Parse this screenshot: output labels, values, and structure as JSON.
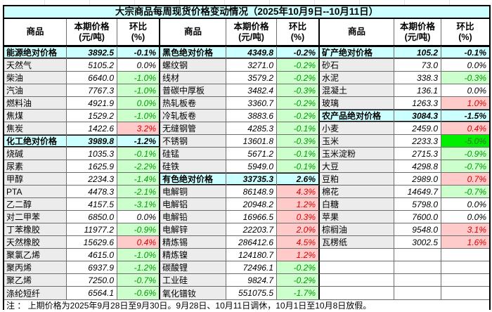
{
  "title": "大宗商品每周现货价格变动情况（2025年10月9日--10月11日）",
  "header": {
    "commodity": "商品",
    "price_l1": "本期价格",
    "price_l2": "(元/吨)",
    "pct_l1": "环比",
    "pct_l2": "(%)"
  },
  "groups": [
    {
      "rows": [
        {
          "name": "能源绝对价格",
          "price": "3892.5",
          "pct": "-0.1%",
          "tone": "cat"
        },
        {
          "name": "天然气",
          "price": "5105.2",
          "pct": "0.0%",
          "tone": "flat"
        },
        {
          "name": "柴油",
          "price": "6640.0",
          "pct": "-1.0%",
          "tone": "down"
        },
        {
          "name": "汽油",
          "price": "7767.3",
          "pct": "-1.0%",
          "tone": "down"
        },
        {
          "name": "燃料油",
          "price": "4921.9",
          "pct": "0.0%",
          "tone": "down"
        },
        {
          "name": "焦煤",
          "price": "1529.2",
          "pct": "-1.0%",
          "tone": "down"
        },
        {
          "name": "焦炭",
          "price": "1422.6",
          "pct": "3.2%",
          "tone": "up"
        },
        {
          "name": "化工绝对价格",
          "price": "3989.8",
          "pct": "-1.2%",
          "tone": "cat"
        },
        {
          "name": "烧碱",
          "price": "1035.3",
          "pct": "-0.1%",
          "tone": "down"
        },
        {
          "name": "尿素",
          "price": "1625.9",
          "pct": "-2.2%",
          "tone": "down"
        },
        {
          "name": "甲醇",
          "price": "2234.3",
          "pct": "-1.4%",
          "tone": "down"
        },
        {
          "name": "PTA",
          "price": "4478.3",
          "pct": "-2.1%",
          "tone": "down"
        },
        {
          "name": "乙二醇",
          "price": "4157.5",
          "pct": "-3.1%",
          "tone": "down"
        },
        {
          "name": "对二甲苯",
          "price": "6850.0",
          "pct": "0.0%",
          "tone": "flat"
        },
        {
          "name": "丁苯橡胶",
          "price": "11977.2",
          "pct": "-0.9%",
          "tone": "down"
        },
        {
          "name": "天然橡胶",
          "price": "15629.6",
          "pct": "0.4%",
          "tone": "up"
        },
        {
          "name": "聚氯乙烯",
          "price": "4615.0",
          "pct": "-1.0%",
          "tone": "down"
        },
        {
          "name": "聚丙烯",
          "price": "6937.9",
          "pct": "-1.2%",
          "tone": "down"
        },
        {
          "name": "聚乙烯",
          "price": "7250.0",
          "pct": "-0.7%",
          "tone": "down"
        },
        {
          "name": "涤纶短纤",
          "price": "6564.1",
          "pct": "-0.6%",
          "tone": "down"
        }
      ]
    },
    {
      "rows": [
        {
          "name": "黑色绝对价格",
          "price": "4349.8",
          "pct": "-0.2%",
          "tone": "cat"
        },
        {
          "name": "螺纹钢",
          "price": "3271.0",
          "pct": "-0.2%",
          "tone": "down"
        },
        {
          "name": "线材",
          "price": "3579.2",
          "pct": "-0.2%",
          "tone": "down"
        },
        {
          "name": "普碳中厚板",
          "price": "3482.4",
          "pct": "-0.3%",
          "tone": "down"
        },
        {
          "name": "热轧板卷",
          "price": "3360.7",
          "pct": "-0.2%",
          "tone": "down"
        },
        {
          "name": "冷轧板卷",
          "price": "3883.6",
          "pct": "-0.2%",
          "tone": "down"
        },
        {
          "name": "无缝钢管",
          "price": "4285.3",
          "pct": "-0.1%",
          "tone": "down"
        },
        {
          "name": "不锈钢",
          "price": "13601.8",
          "pct": "-0.3%",
          "tone": "down"
        },
        {
          "name": "硅锰",
          "price": "5671.2",
          "pct": "-0.1%",
          "tone": "down"
        },
        {
          "name": "硅铁",
          "price": "5949.0",
          "pct": "-0.1%",
          "tone": "down"
        },
        {
          "name": "有色绝对价格",
          "price": "33735.3",
          "pct": "2.6%",
          "tone": "cat"
        },
        {
          "name": "电解铜",
          "price": "86148.9",
          "pct": "4.3%",
          "tone": "up"
        },
        {
          "name": "电解铝",
          "price": "20948.2",
          "pct": "1.2%",
          "tone": "up"
        },
        {
          "name": "电解铅",
          "price": "16966.5",
          "pct": "0.3%",
          "tone": "up"
        },
        {
          "name": "电解锌",
          "price": "22203.7",
          "pct": "2.0%",
          "tone": "up"
        },
        {
          "name": "精炼锡",
          "price": "286412.6",
          "pct": "4.5%",
          "tone": "up"
        },
        {
          "name": "精炼镍",
          "price": "124180.7",
          "pct": "1.2%",
          "tone": "up"
        },
        {
          "name": "碳酸锂",
          "price": "72496.1",
          "pct": "-0.2%",
          "tone": "down"
        },
        {
          "name": "工业硅",
          "price": "9824.7",
          "pct": "-0.2%",
          "tone": "down"
        },
        {
          "name": "氧化镨钕",
          "price": "551075.5",
          "pct": "-1.7%",
          "tone": "down"
        }
      ]
    },
    {
      "rows": [
        {
          "name": "矿产绝对价格",
          "price": "105.2",
          "pct": "-0.1%",
          "tone": "cat"
        },
        {
          "name": "砂石",
          "price": "73.0",
          "pct": "0.0%",
          "tone": "flat"
        },
        {
          "name": "水泥",
          "price": "338.3",
          "pct": "-0.3%",
          "tone": "down"
        },
        {
          "name": "混凝土",
          "price": "136.1",
          "pct": "0.0%",
          "tone": "flat"
        },
        {
          "name": "玻璃",
          "price": "1263.3",
          "pct": "1.0%",
          "tone": "up"
        },
        {
          "name": "农产品绝对价格",
          "price": "3084.3",
          "pct": "-1.5%",
          "tone": "cat"
        },
        {
          "name": "小麦",
          "price": "2459.0",
          "pct": "0.4%",
          "tone": "up"
        },
        {
          "name": "玉米",
          "price": "2233.3",
          "pct": "-5.0%",
          "tone": "bigdown"
        },
        {
          "name": "玉米淀粉",
          "price": "2715.3",
          "pct": "-0.9%",
          "tone": "down"
        },
        {
          "name": "大豆",
          "price": "4298.8",
          "pct": "-0.7%",
          "tone": "down"
        },
        {
          "name": "豆粕",
          "price": "2989.0",
          "pct": "0.7%",
          "tone": "up"
        },
        {
          "name": "棉花",
          "price": "14649.7",
          "pct": "-0.7%",
          "tone": "down"
        },
        {
          "name": "白糖",
          "price": "5798.0",
          "pct": "0.0%",
          "tone": "flat"
        },
        {
          "name": "苹果",
          "price": "7600.0",
          "pct": "0.0%",
          "tone": "flat"
        },
        {
          "name": "棕榈油",
          "price": "9548.0",
          "pct": "3.1%",
          "tone": "up"
        },
        {
          "name": "瓦楞纸",
          "price": "3002.5",
          "pct": "1.6%",
          "tone": "up"
        },
        {
          "name": "",
          "price": "",
          "pct": "",
          "tone": "empty"
        },
        {
          "name": "",
          "price": "",
          "pct": "",
          "tone": "empty"
        },
        {
          "name": "",
          "price": "",
          "pct": "",
          "tone": "empty"
        },
        {
          "name": "",
          "price": "",
          "pct": "",
          "tone": "empty"
        }
      ]
    }
  ],
  "footnote": "注 ： 上期价格为2025年9月28日至9月30日。9月28日、10月11日调休，10月1日至10月8日放假。",
  "colors": {
    "category_bg": "#ccffff",
    "name_col_bg": "#ececec",
    "down_bg": "#ccffcc",
    "down_text": "#009b00",
    "up_bg": "#ffcaca",
    "up_text": "#dd0000",
    "big_down_bg": "#00ee00",
    "big_down_text": "#3d6b3d"
  }
}
